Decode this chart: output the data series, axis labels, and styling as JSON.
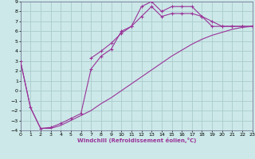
{
  "xlabel": "Windchill (Refroidissement éolien,°C)",
  "bg_color": "#cce8e8",
  "grid_color": "#aacccc",
  "line_color": "#993399",
  "xlim": [
    0,
    23
  ],
  "ylim": [
    -4,
    9
  ],
  "xticks": [
    0,
    1,
    2,
    3,
    4,
    5,
    6,
    7,
    8,
    9,
    10,
    11,
    12,
    13,
    14,
    15,
    16,
    17,
    18,
    19,
    20,
    21,
    22,
    23
  ],
  "yticks": [
    -4,
    -3,
    -2,
    -1,
    0,
    1,
    2,
    3,
    4,
    5,
    6,
    7,
    8,
    9
  ],
  "curve_diag_x": [
    0,
    1,
    2,
    3,
    4,
    5,
    6,
    7,
    8,
    9,
    10,
    11,
    12,
    13,
    14,
    15,
    16,
    17,
    18,
    19,
    20,
    21,
    22,
    23
  ],
  "curve_diag_y": [
    3.0,
    -1.7,
    -3.8,
    -3.8,
    -3.5,
    -3.0,
    -2.5,
    -2.0,
    -1.3,
    -0.7,
    0.0,
    0.7,
    1.4,
    2.1,
    2.8,
    3.5,
    4.1,
    4.7,
    5.2,
    5.6,
    5.9,
    6.2,
    6.4,
    6.5
  ],
  "curve_upper_x": [
    0,
    1,
    2,
    3,
    4,
    5,
    6,
    7,
    8,
    9,
    10,
    11,
    12,
    13,
    14,
    15,
    16,
    17,
    18,
    19,
    20,
    21,
    22,
    23
  ],
  "curve_upper_y": [
    3.0,
    -1.7,
    -3.8,
    -3.7,
    -3.3,
    -2.8,
    -2.3,
    2.2,
    3.5,
    4.2,
    6.0,
    6.5,
    8.5,
    9.0,
    8.0,
    8.5,
    8.5,
    8.5,
    7.5,
    6.5,
    6.5,
    6.5,
    6.5,
    6.5
  ],
  "curve_mid_x": [
    7,
    8,
    9,
    10,
    11,
    12,
    13,
    14,
    15,
    16,
    17,
    18,
    19,
    20,
    21,
    22,
    23
  ],
  "curve_mid_y": [
    3.3,
    4.0,
    4.8,
    5.8,
    6.5,
    7.5,
    8.5,
    7.5,
    7.8,
    7.8,
    7.8,
    7.5,
    7.0,
    6.5,
    6.5,
    6.5,
    6.5
  ]
}
